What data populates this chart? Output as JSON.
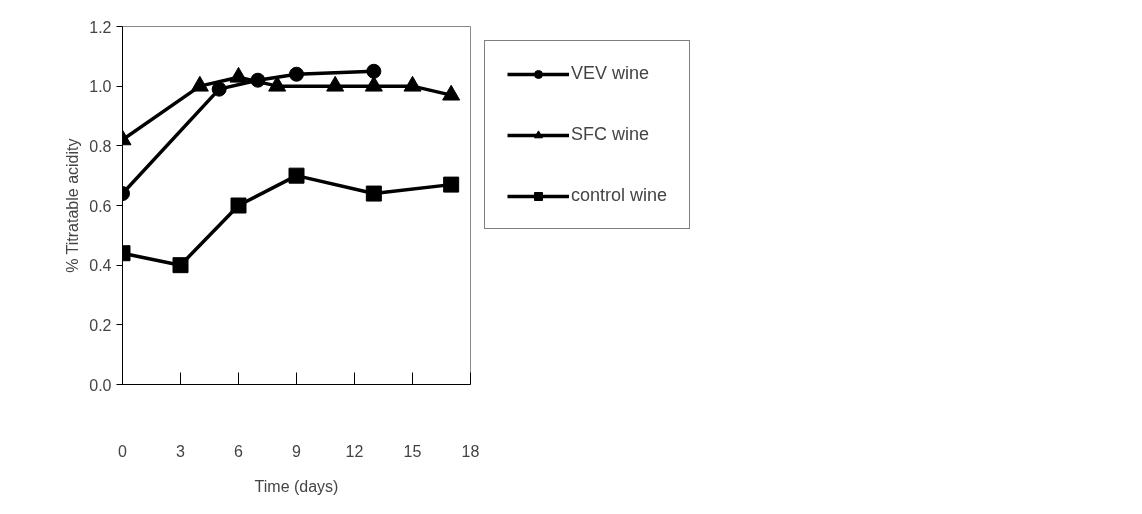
{
  "chart_data": {
    "type": "line",
    "xlabel": "Time (days)",
    "ylabel": "% Titratable acidity",
    "xlim": [
      0,
      18
    ],
    "xticks": [
      0,
      3,
      6,
      9,
      12,
      15,
      18
    ],
    "ylim": [
      0,
      1.2
    ],
    "yticks": [
      {
        "value": 0,
        "label": "0.0"
      },
      0.2,
      0.4,
      0.6,
      0.8,
      {
        "value": 1,
        "label": "1.0"
      },
      1.2
    ],
    "grid": false,
    "legend": "right",
    "line_style": "solid",
    "series": [
      {
        "name": "VEV wine",
        "color": "#000000",
        "marker": "circle",
        "x": [
          0,
          5,
          7,
          9,
          13
        ],
        "values": [
          0.64,
          0.99,
          1.02,
          1.04,
          1.05
        ]
      },
      {
        "name": "SFC wine",
        "color": "#000000",
        "marker": "triangle",
        "x": [
          0,
          4,
          6,
          8,
          11,
          13,
          15,
          17
        ],
        "values": [
          0.82,
          1.0,
          1.03,
          1.0,
          1.0,
          1.0,
          1.0,
          0.97
        ]
      },
      {
        "name": "control wine",
        "color": "#000000",
        "marker": "square",
        "x": [
          0,
          3,
          6,
          9,
          13,
          17
        ],
        "values": [
          0.44,
          0.4,
          0.6,
          0.7,
          0.64,
          0.67
        ]
      }
    ]
  }
}
